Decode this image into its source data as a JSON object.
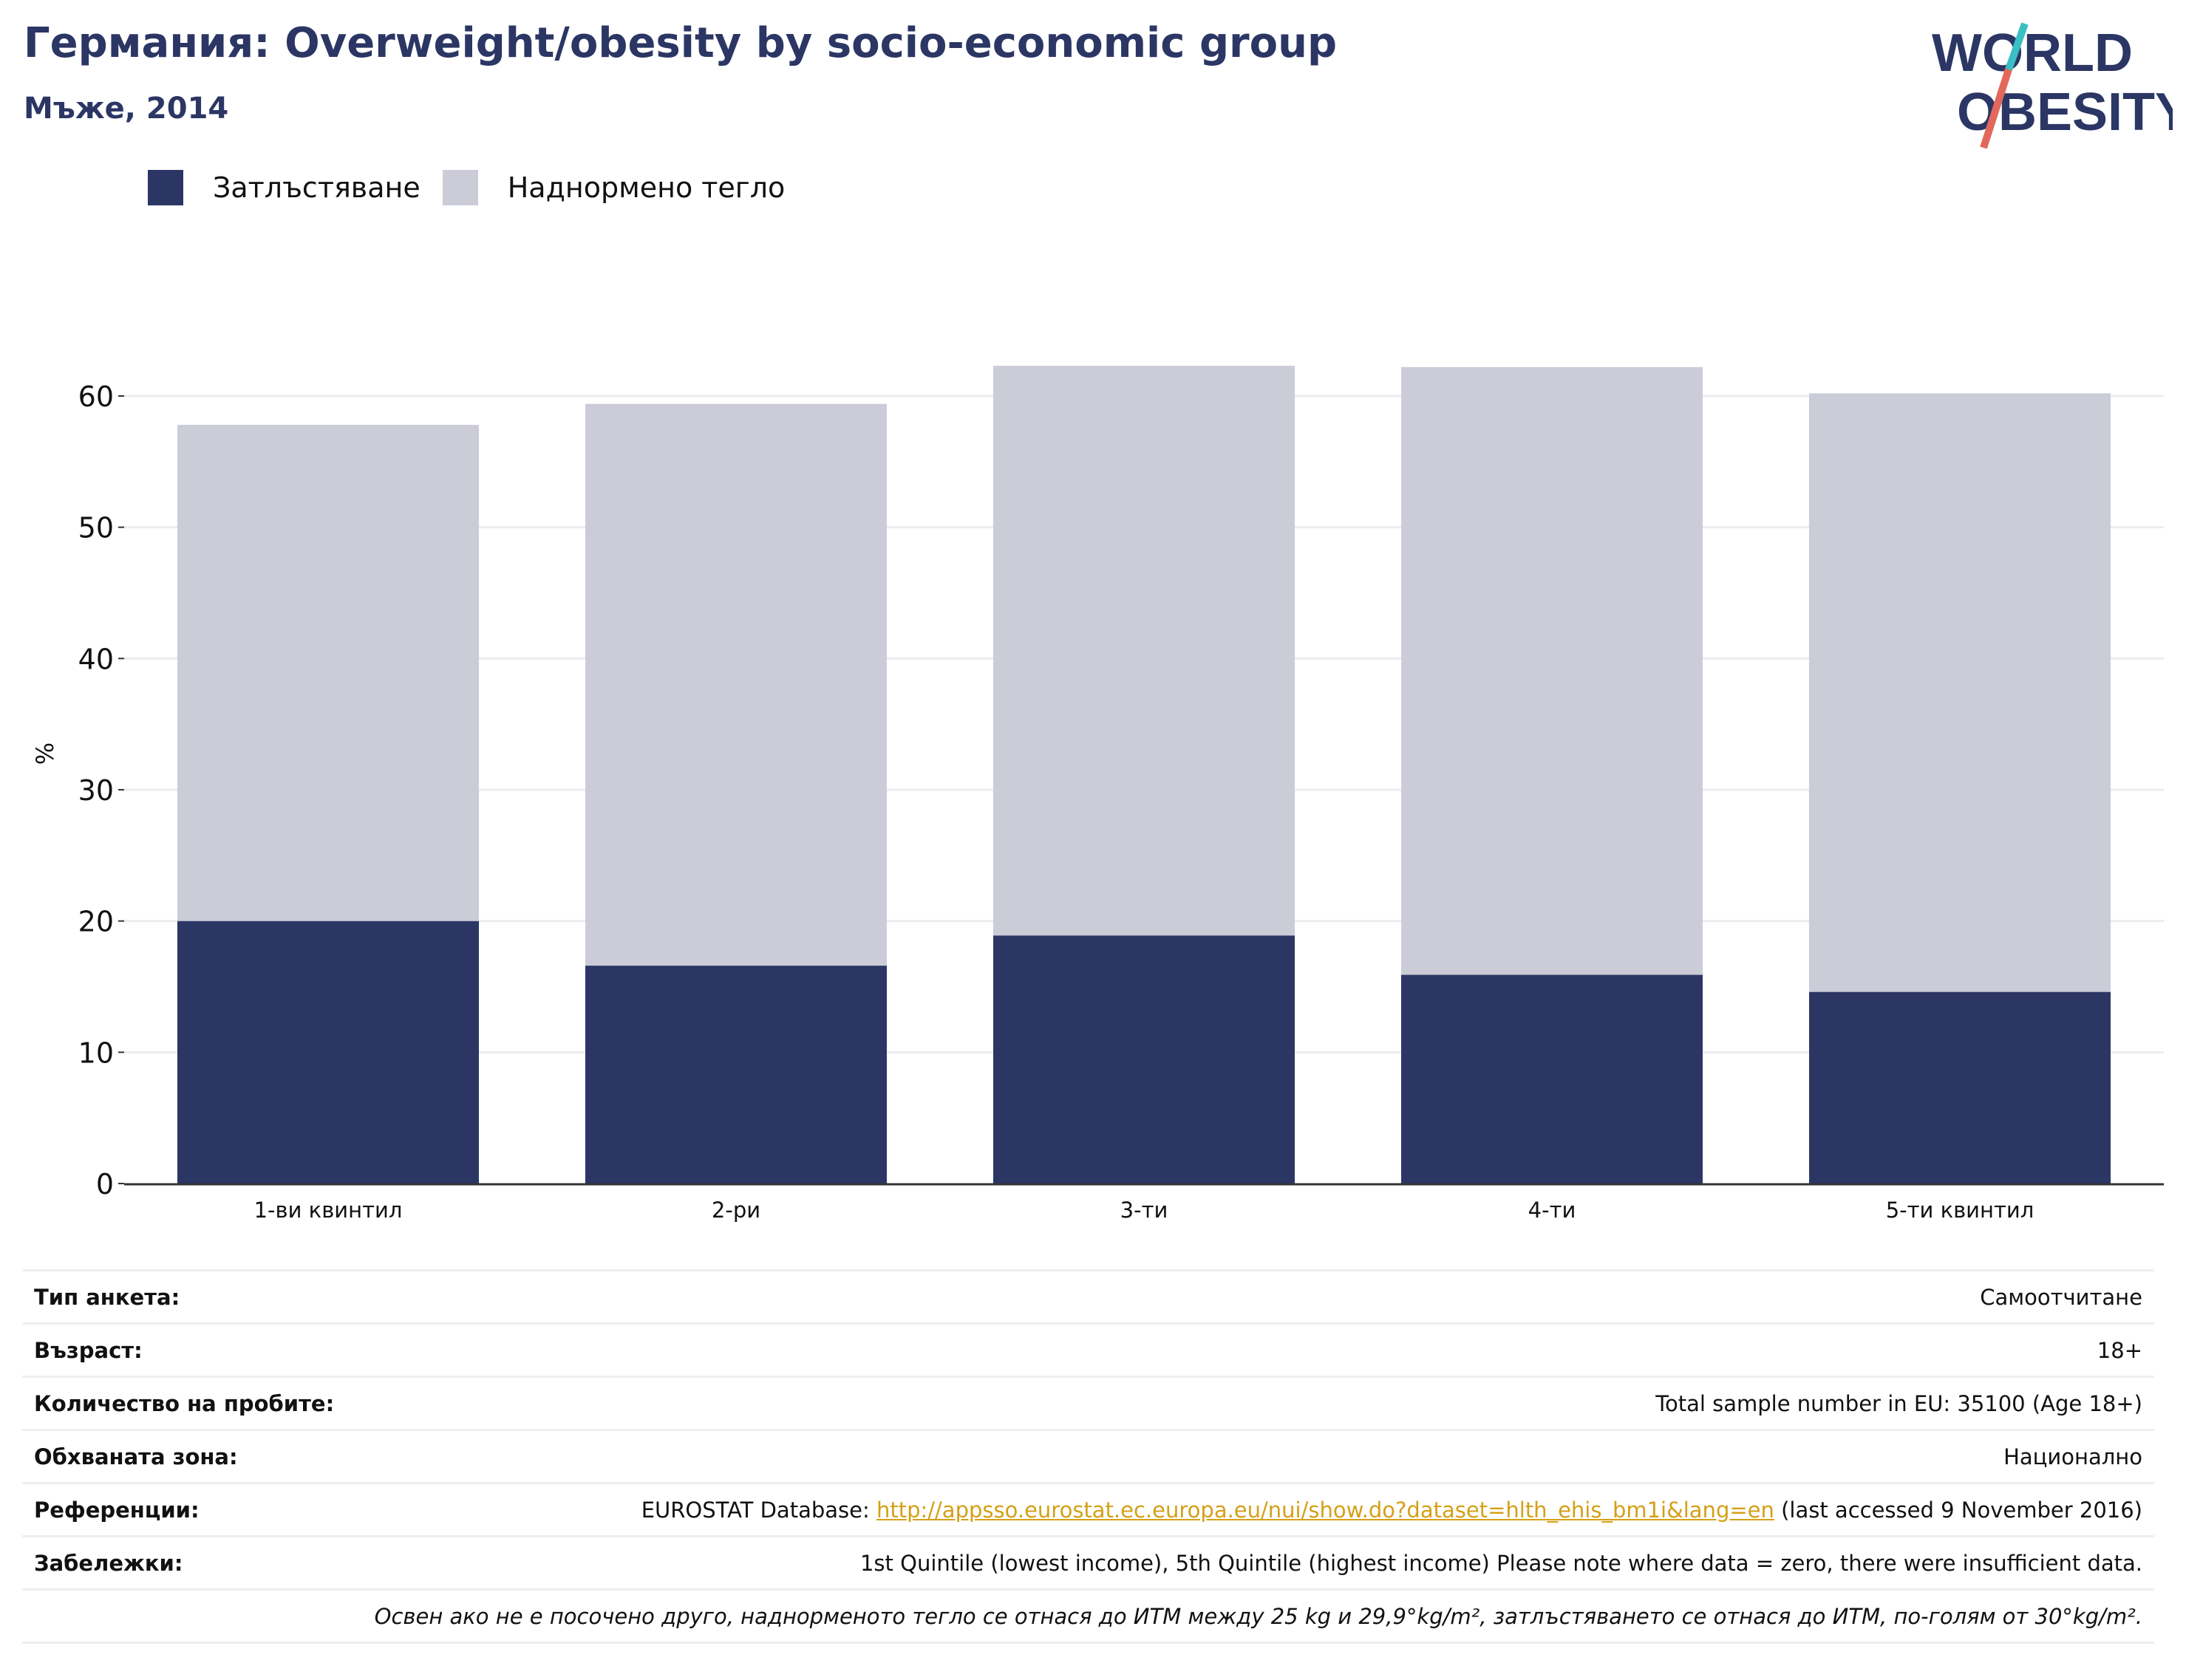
{
  "header": {
    "title": "Германия: Overweight/obesity by socio-economic group",
    "subtitle": "Мъже, 2014"
  },
  "logo": {
    "line1": "WORLD",
    "line2": "OBESITY"
  },
  "colors": {
    "obesity": "#2b3664",
    "overweight": "#cbccd8",
    "title": "#2b3664",
    "link": "#d4a017"
  },
  "chart_data": {
    "type": "bar",
    "stacked": true,
    "categories": [
      "1-ви квинтил",
      "2-ри",
      "3-ти",
      "4-ти",
      "5-ти квинтил"
    ],
    "series": [
      {
        "name": "Затлъстяване",
        "values": [
          20.0,
          16.6,
          18.9,
          15.9,
          14.6
        ]
      },
      {
        "name": "Наднормено тегло",
        "values": [
          37.8,
          42.8,
          43.4,
          46.3,
          45.6
        ]
      }
    ],
    "ylabel": "%",
    "ylim": [
      0,
      70
    ],
    "yticks": [
      0,
      10,
      20,
      30,
      40,
      50,
      60
    ],
    "grid": true,
    "legend_position": "top-left"
  },
  "info": {
    "rows": [
      {
        "key": "Тип анкета:",
        "value": "Самоотчитане"
      },
      {
        "key": "Възраст:",
        "value": "18+"
      },
      {
        "key": "Количество на пробите:",
        "value": "Total sample number in EU: 35100 (Age 18+)"
      },
      {
        "key": "Обхваната зона:",
        "value": "Национално"
      }
    ],
    "references": {
      "key": "Референции:",
      "prefix": "EUROSTAT Database: ",
      "link": "http://appsso.eurostat.ec.europa.eu/nui/show.do?dataset=hlth_ehis_bm1i&lang=en",
      "suffix": " (last accessed 9 November 2016)"
    },
    "notes": {
      "key": "Забележки:",
      "value": "1st Quintile (lowest income), 5th Quintile (highest income) Please note where data = zero, there were insufficient data."
    },
    "footnote": "Освен ако не е посочено друго, наднорменото тегло се отнася до ИТМ между 25 kg и 29,9°kg/m², затлъстяването се отнася до ИТМ, по-голям от 30°kg/m²."
  }
}
